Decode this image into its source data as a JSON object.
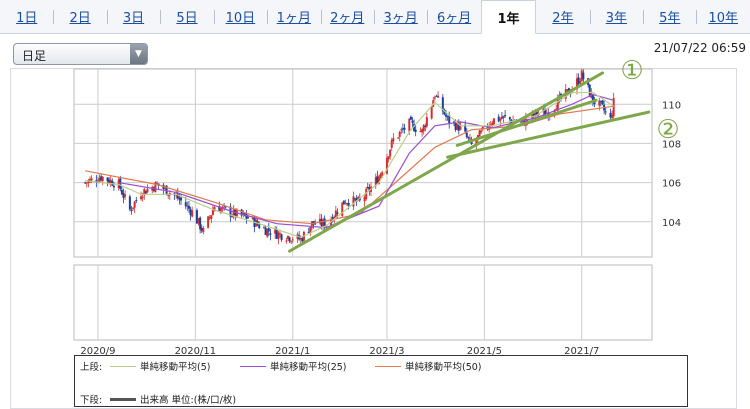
{
  "tabs": [
    {
      "label": "1日",
      "active": false
    },
    {
      "label": "2日",
      "active": false
    },
    {
      "label": "3日",
      "active": false
    },
    {
      "label": "5日",
      "active": false
    },
    {
      "label": "10日",
      "active": false
    },
    {
      "label": "1ヶ月",
      "active": false
    },
    {
      "label": "2ヶ月",
      "active": false
    },
    {
      "label": "3ヶ月",
      "active": false
    },
    {
      "label": "6ヶ月",
      "active": false
    },
    {
      "label": "1年",
      "active": true
    },
    {
      "label": "2年",
      "active": false
    },
    {
      "label": "3年",
      "active": false
    },
    {
      "label": "5年",
      "active": false
    },
    {
      "label": "10年",
      "active": false
    }
  ],
  "period_select": {
    "value": "日足",
    "icon": "triangle-down-icon"
  },
  "timestamp": "21/07/22 06:59",
  "legend": {
    "upper_label": "上段:",
    "lower_label": "下段:",
    "ma5": "単純移動平均(5)",
    "ma25": "単純移動平均(25)",
    "ma50": "単純移動平均(50)",
    "volume": "出来高 単位:(株/口/枚)"
  },
  "annotations": {
    "line1": "①",
    "line2": "②"
  },
  "colors": {
    "ma5": "#b9cf8a",
    "ma25": "#9a4fd0",
    "ma50": "#e07a50",
    "trendline": "#7ea64a",
    "up": "#d32f2f",
    "down": "#1c3f9a",
    "volume": "#555555"
  },
  "chart_data": {
    "type": "candlestick",
    "x_ticks": [
      "2020/9",
      "2020/11",
      "2021/1",
      "2021/3",
      "2021/5",
      "2021/7"
    ],
    "y_ticks": [
      104,
      106,
      108,
      110
    ],
    "ylim": [
      102.2,
      111.8
    ],
    "grid": true,
    "close_path": [
      [
        "2020-08-24",
        106.0
      ],
      [
        "2020-09-03",
        106.3
      ],
      [
        "2020-09-14",
        105.9
      ],
      [
        "2020-09-21",
        104.6
      ],
      [
        "2020-09-28",
        105.5
      ],
      [
        "2020-10-08",
        105.9
      ],
      [
        "2020-10-20",
        105.3
      ],
      [
        "2020-10-30",
        104.5
      ],
      [
        "2020-11-06",
        103.5
      ],
      [
        "2020-11-13",
        104.8
      ],
      [
        "2020-11-25",
        104.4
      ],
      [
        "2020-12-04",
        104.2
      ],
      [
        "2020-12-15",
        103.6
      ],
      [
        "2020-12-22",
        103.4
      ],
      [
        "2021-01-06",
        103.1
      ],
      [
        "2021-01-13",
        103.9
      ],
      [
        "2021-01-22",
        103.9
      ],
      [
        "2021-02-03",
        105.1
      ],
      [
        "2021-02-12",
        105.0
      ],
      [
        "2021-02-24",
        106.3
      ],
      [
        "2021-03-05",
        108.2
      ],
      [
        "2021-03-15",
        109.0
      ],
      [
        "2021-03-23",
        108.6
      ],
      [
        "2021-03-31",
        110.5
      ],
      [
        "2021-04-08",
        109.2
      ],
      [
        "2021-04-16",
        108.8
      ],
      [
        "2021-04-23",
        107.9
      ],
      [
        "2021-05-06",
        109.2
      ],
      [
        "2021-05-14",
        109.3
      ],
      [
        "2021-05-24",
        109.0
      ],
      [
        "2021-06-02",
        109.5
      ],
      [
        "2021-06-10",
        109.6
      ],
      [
        "2021-06-17",
        110.2
      ],
      [
        "2021-06-25",
        110.8
      ],
      [
        "2021-07-01",
        111.5
      ],
      [
        "2021-07-08",
        110.2
      ],
      [
        "2021-07-14",
        109.8
      ],
      [
        "2021-07-19",
        109.2
      ],
      [
        "2021-07-21",
        110.1
      ]
    ],
    "ma5": [
      [
        "2020-08-24",
        106.1
      ],
      [
        "2020-09-14",
        105.9
      ],
      [
        "2020-09-28",
        105.4
      ],
      [
        "2020-10-20",
        105.4
      ],
      [
        "2020-11-13",
        104.6
      ],
      [
        "2020-12-15",
        103.8
      ],
      [
        "2021-01-06",
        103.2
      ],
      [
        "2021-01-22",
        103.8
      ],
      [
        "2021-02-24",
        106.0
      ],
      [
        "2021-03-15",
        108.6
      ],
      [
        "2021-03-31",
        110.1
      ],
      [
        "2021-04-16",
        108.9
      ],
      [
        "2021-05-06",
        108.9
      ],
      [
        "2021-06-02",
        109.4
      ],
      [
        "2021-06-25",
        110.6
      ],
      [
        "2021-07-08",
        110.6
      ],
      [
        "2021-07-21",
        109.9
      ]
    ],
    "ma25": [
      [
        "2020-09-14",
        106.0
      ],
      [
        "2020-10-20",
        105.5
      ],
      [
        "2020-11-25",
        104.5
      ],
      [
        "2020-12-22",
        103.9
      ],
      [
        "2021-01-22",
        103.7
      ],
      [
        "2021-02-24",
        104.8
      ],
      [
        "2021-03-15",
        107.5
      ],
      [
        "2021-03-31",
        108.9
      ],
      [
        "2021-04-16",
        109.1
      ],
      [
        "2021-05-06",
        108.8
      ],
      [
        "2021-06-02",
        109.3
      ],
      [
        "2021-06-25",
        110.0
      ],
      [
        "2021-07-08",
        110.5
      ],
      [
        "2021-07-21",
        110.2
      ]
    ],
    "ma50": [
      [
        "2020-08-24",
        106.6
      ],
      [
        "2020-10-08",
        105.9
      ],
      [
        "2020-11-13",
        105.0
      ],
      [
        "2020-12-15",
        104.1
      ],
      [
        "2021-01-13",
        103.9
      ],
      [
        "2021-02-12",
        104.4
      ],
      [
        "2021-03-05",
        105.9
      ],
      [
        "2021-03-31",
        107.8
      ],
      [
        "2021-04-23",
        108.7
      ],
      [
        "2021-05-24",
        108.9
      ],
      [
        "2021-06-17",
        109.5
      ],
      [
        "2021-07-21",
        109.9
      ]
    ],
    "trend_lines": [
      {
        "label": "①",
        "from": [
          "2020-12-30",
          102.5
        ],
        "to": [
          "2021-07-14",
          111.6
        ]
      },
      {
        "label": "②",
        "from": [
          "2021-04-08",
          107.3
        ],
        "to": [
          "2021-08-12",
          109.6
        ]
      },
      {
        "label": "",
        "from": [
          "2021-04-14",
          107.9
        ],
        "to": [
          "2021-07-10",
          110.2
        ]
      }
    ],
    "volume": []
  }
}
